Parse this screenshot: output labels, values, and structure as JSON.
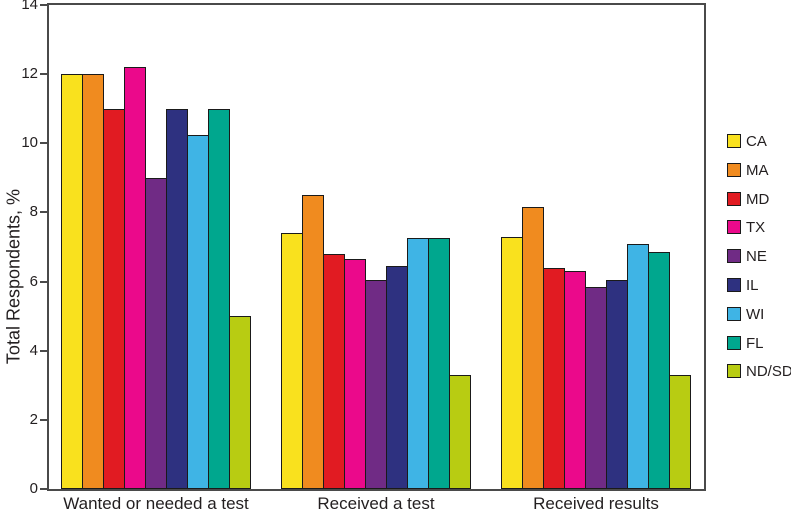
{
  "chart_data": {
    "type": "bar",
    "title": "",
    "xlabel": "",
    "ylabel": "Total Respondents, %",
    "ylim": [
      0,
      14
    ],
    "yticks": [
      0,
      2,
      4,
      6,
      8,
      10,
      12,
      14
    ],
    "grid": false,
    "legend_position": "right",
    "plot_border": "full-box",
    "categories": [
      "Wanted or needed a test",
      "Received a test",
      "Received results"
    ],
    "series": [
      {
        "name": "CA",
        "color": "#f9e11e",
        "values": [
          12.0,
          7.4,
          7.3
        ]
      },
      {
        "name": "MA",
        "color": "#f08b1f",
        "values": [
          12.0,
          8.5,
          8.15
        ]
      },
      {
        "name": "MD",
        "color": "#e11b22",
        "values": [
          11.0,
          6.8,
          6.4
        ]
      },
      {
        "name": "TX",
        "color": "#eb098b",
        "values": [
          12.2,
          6.65,
          6.3
        ]
      },
      {
        "name": "NE",
        "color": "#702b85",
        "values": [
          9.0,
          6.05,
          5.85
        ]
      },
      {
        "name": "IL",
        "color": "#2e3180",
        "values": [
          11.0,
          6.45,
          6.05
        ]
      },
      {
        "name": "WI",
        "color": "#3fb4e5",
        "values": [
          10.25,
          7.25,
          7.1
        ]
      },
      {
        "name": "FL",
        "color": "#00a78e",
        "values": [
          11.0,
          7.25,
          6.85
        ]
      },
      {
        "name": "ND/SD",
        "color": "#b8cc12",
        "values": [
          5.0,
          3.3,
          3.3
        ]
      }
    ],
    "colors": {
      "axis_border": "#4a4a4a",
      "bar_outline": "#1a1a1a",
      "text": "#231f20",
      "background": "#ffffff"
    }
  }
}
